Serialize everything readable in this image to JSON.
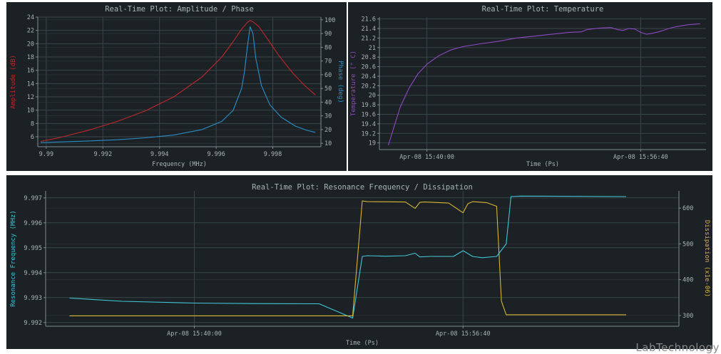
{
  "watermark": "LabTechnology",
  "colors": {
    "background": "#1b2124",
    "grid": "#39464b",
    "axis": "#7f8c90",
    "text": "#a9b4b7",
    "amplitude": "#c0282a",
    "phase": "#2b8fc9",
    "temperature": "#8e49c4",
    "resonance": "#43c6d6",
    "dissipation": "#d8b534"
  },
  "chart_data": [
    {
      "id": "amp-phase",
      "type": "line",
      "title": "Real-Time Plot: Amplitude / Phase",
      "xlabel": "Frequency (MHz)",
      "ylabel": "Amplitude (dB)",
      "ylabel_right": "Phase (deg)",
      "xlim": [
        9.9897,
        9.9997
      ],
      "ylim": [
        4.5,
        24
      ],
      "ylim_right": [
        7.5,
        102
      ],
      "xticks": [
        9.99,
        9.992,
        9.994,
        9.996,
        9.998
      ],
      "xtick_labels": [
        "9.99",
        "9.992",
        "9.994",
        "9.996",
        "9.998"
      ],
      "yticks": [
        6,
        8,
        10,
        12,
        14,
        16,
        18,
        20,
        22,
        24
      ],
      "yticks_right": [
        10,
        20,
        30,
        40,
        50,
        60,
        70,
        80,
        90,
        100
      ],
      "series": [
        {
          "name": "Amplitude",
          "axis": "left",
          "x": [
            9.9898,
            9.9905,
            9.9915,
            9.9925,
            9.9935,
            9.9945,
            9.9955,
            9.9962,
            9.9966,
            9.9969,
            9.9971,
            9.9972,
            9.9973,
            9.9975,
            9.9978,
            9.9982,
            9.9987,
            9.9991,
            9.9995
          ],
          "y": [
            5.3,
            5.9,
            7.0,
            8.3,
            9.9,
            12.0,
            15.0,
            18.0,
            20.3,
            22.2,
            23.2,
            23.5,
            23.3,
            22.6,
            20.8,
            18.3,
            15.6,
            13.8,
            12.3
          ]
        },
        {
          "name": "Phase",
          "axis": "right",
          "x": [
            9.9898,
            9.9905,
            9.9915,
            9.9925,
            9.9935,
            9.9945,
            9.9955,
            9.9962,
            9.9966,
            9.9969,
            9.997,
            9.9971,
            9.9972,
            9.9973,
            9.9974,
            9.9976,
            9.9979,
            9.9983,
            9.9988,
            9.9992,
            9.9995
          ],
          "y": [
            10.5,
            11.0,
            11.7,
            12.6,
            14.0,
            16.0,
            20.0,
            26.0,
            34.0,
            50.0,
            62.0,
            80.0,
            95.0,
            90.0,
            72.0,
            52.0,
            38.0,
            29.0,
            22.5,
            19.5,
            18.0
          ]
        }
      ]
    },
    {
      "id": "temperature",
      "type": "line",
      "title": "Real-Time Plot: Temperature",
      "xlabel": "Time (Ps)",
      "ylabel": "Temperature (° C)",
      "xlim": [
        -8,
        47
      ],
      "ylim": [
        18.86,
        21.64
      ],
      "xticks": [
        0,
        36
      ],
      "xtick_labels": [
        "Apr-08 15:40:00",
        "Apr-08 15:56:40"
      ],
      "yticks": [
        19,
        19.2,
        19.4,
        19.6,
        19.8,
        20,
        20.2,
        20.4,
        20.6,
        20.8,
        21,
        21.2,
        21.4,
        21.6
      ],
      "ytick_labels": [
        "19",
        "19.2",
        "19.4",
        "19.6",
        "19.8",
        "20",
        "20.2",
        "20.4",
        "20.6",
        "20.8",
        "21",
        "21.2",
        "21.4",
        "21.6"
      ],
      "series": [
        {
          "name": "Temperature",
          "x": [
            -6.5,
            -5.5,
            -4.5,
            -3,
            -1.5,
            0,
            2,
            4,
            6,
            9,
            12,
            15,
            18,
            21,
            24,
            26,
            27,
            29,
            31,
            32,
            33,
            34,
            35,
            36,
            37,
            38,
            39,
            40,
            41,
            42,
            44,
            46
          ],
          "y": [
            18.95,
            19.35,
            19.75,
            20.15,
            20.45,
            20.65,
            20.83,
            20.95,
            21.02,
            21.08,
            21.13,
            21.2,
            21.24,
            21.28,
            21.32,
            21.33,
            21.38,
            21.41,
            21.42,
            21.38,
            21.36,
            21.4,
            21.39,
            21.32,
            21.28,
            21.3,
            21.33,
            21.37,
            21.41,
            21.44,
            21.48,
            21.5
          ]
        }
      ]
    },
    {
      "id": "resonance-dissipation",
      "type": "line",
      "title": "Real-Time Plot: Resonance Frequency / Dissipation",
      "xlabel": "Time (Ps)",
      "ylabel": "Resonance Frequency (MHz)",
      "ylabel_right": "Dissipation (x1e-06)",
      "xlim": [
        -31,
        101
      ],
      "ylim": [
        9.99185,
        9.99728
      ],
      "ylim_right": [
        270,
        648
      ],
      "xticks": [
        0,
        56
      ],
      "xtick_labels": [
        "Apr-08 15:40:00",
        "Apr-08 15:56:40"
      ],
      "yticks": [
        9.992,
        9.993,
        9.994,
        9.995,
        9.996,
        9.997
      ],
      "ytick_labels": [
        "9.992",
        "9.993",
        "9.994",
        "9.995",
        "9.996",
        "9.997"
      ],
      "yticks_right": [
        300,
        400,
        500,
        600
      ],
      "series": [
        {
          "name": "Resonance Frequency",
          "axis": "left",
          "x": [
            -26,
            -15,
            0,
            12,
            26,
            33,
            35,
            36,
            40,
            44,
            46,
            47,
            49,
            54,
            56,
            58,
            60,
            63,
            65,
            66,
            68,
            90
          ],
          "y": [
            9.99298,
            9.99285,
            9.99278,
            9.99276,
            9.99275,
            9.99218,
            9.99465,
            9.99468,
            9.99466,
            9.99468,
            9.99478,
            9.99463,
            9.99465,
            9.99465,
            9.99488,
            9.99465,
            9.9946,
            9.99465,
            9.99515,
            9.99705,
            9.99707,
            9.99705
          ]
        },
        {
          "name": "Dissipation",
          "axis": "right",
          "x": [
            -26,
            26,
            33,
            35,
            36,
            44,
            46,
            47,
            48,
            53,
            56,
            57,
            58,
            61,
            63,
            64,
            65,
            90
          ],
          "y": [
            299,
            299,
            299,
            620,
            618,
            617,
            599,
            616,
            617,
            614,
            587,
            612,
            618,
            615,
            605,
            340,
            302,
            302
          ]
        }
      ]
    }
  ]
}
